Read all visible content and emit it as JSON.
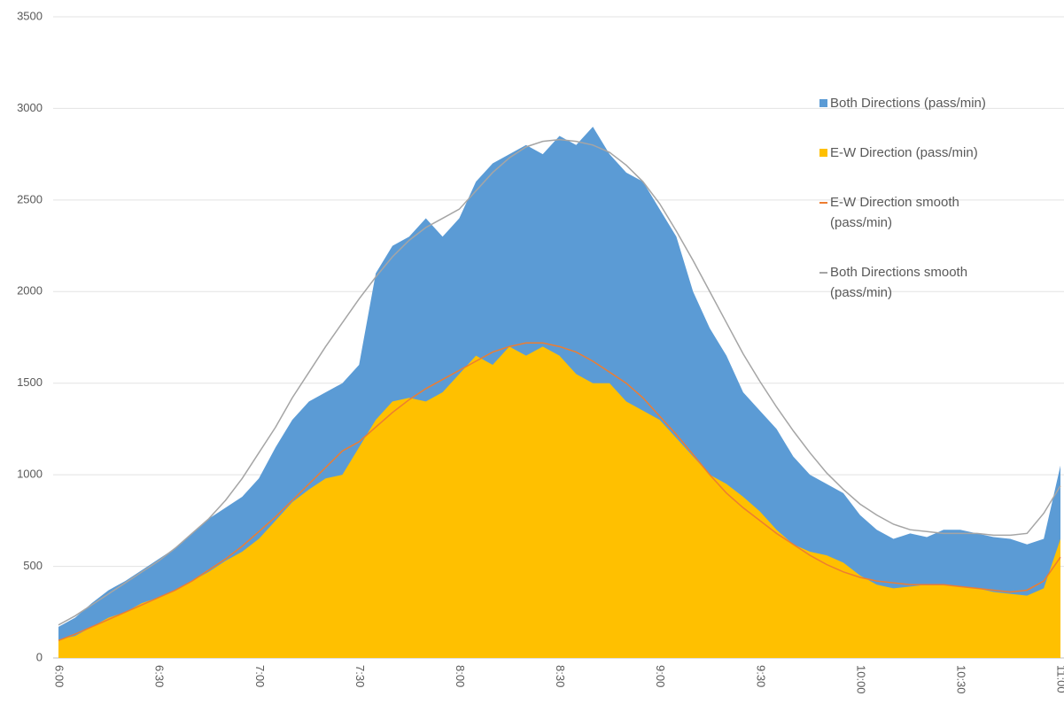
{
  "chart_data": {
    "type": "area",
    "categories": [
      "6:00",
      null,
      null,
      null,
      null,
      null,
      "6:30",
      null,
      null,
      null,
      null,
      null,
      "7:00",
      null,
      null,
      null,
      null,
      null,
      "7:30",
      null,
      null,
      null,
      null,
      null,
      "8:00",
      null,
      null,
      null,
      null,
      null,
      "8:30",
      null,
      null,
      null,
      null,
      null,
      "9:00",
      null,
      null,
      null,
      null,
      null,
      "9:30",
      null,
      null,
      null,
      null,
      null,
      "10:00",
      null,
      null,
      null,
      null,
      null,
      "10:30",
      null,
      null,
      null,
      null,
      null,
      "11:00"
    ],
    "series": [
      {
        "name": "Both Directions (pass/min)",
        "type": "area",
        "color": "#5b9bd5",
        "values": [
          170,
          220,
          300,
          370,
          420,
          480,
          540,
          600,
          680,
          760,
          820,
          880,
          980,
          1150,
          1300,
          1400,
          1450,
          1500,
          1600,
          2100,
          2250,
          2300,
          2400,
          2300,
          2400,
          2600,
          2700,
          2750,
          2800,
          2750,
          2850,
          2800,
          2900,
          2750,
          2650,
          2600,
          2450,
          2300,
          2000,
          1800,
          1650,
          1450,
          1350,
          1250,
          1100,
          1000,
          950,
          900,
          780,
          700,
          650,
          680,
          660,
          700,
          700,
          680,
          660,
          650,
          620,
          650,
          1050
        ]
      },
      {
        "name": "E-W Direction (pass/min)",
        "type": "area",
        "color": "#ffc000",
        "values": [
          100,
          120,
          170,
          220,
          250,
          300,
          330,
          370,
          420,
          470,
          530,
          580,
          650,
          750,
          850,
          920,
          980,
          1000,
          1150,
          1300,
          1400,
          1420,
          1400,
          1450,
          1550,
          1650,
          1600,
          1700,
          1650,
          1700,
          1650,
          1550,
          1500,
          1500,
          1400,
          1350,
          1300,
          1200,
          1100,
          1000,
          950,
          880,
          800,
          700,
          620,
          580,
          560,
          520,
          450,
          400,
          380,
          390,
          400,
          400,
          390,
          380,
          360,
          350,
          340,
          380,
          650
        ]
      },
      {
        "name": "E-W Direction smooth (pass/min)",
        "type": "line",
        "color": "#ed7d31",
        "values": [
          95,
          130,
          170,
          210,
          250,
          290,
          330,
          370,
          420,
          480,
          540,
          610,
          690,
          770,
          860,
          950,
          1040,
          1130,
          1180,
          1260,
          1340,
          1410,
          1470,
          1520,
          1570,
          1620,
          1670,
          1700,
          1720,
          1720,
          1700,
          1670,
          1620,
          1560,
          1500,
          1420,
          1320,
          1220,
          1110,
          1000,
          900,
          820,
          750,
          680,
          620,
          560,
          510,
          470,
          440,
          420,
          410,
          400,
          400,
          400,
          390,
          380,
          370,
          360,
          370,
          420,
          550
        ]
      },
      {
        "name": "Both Directions smooth (pass/min)",
        "type": "line",
        "color": "#a5a5a5",
        "values": [
          180,
          230,
          290,
          350,
          410,
          470,
          530,
          600,
          680,
          760,
          860,
          980,
          1120,
          1260,
          1420,
          1560,
          1700,
          1830,
          1960,
          2080,
          2190,
          2280,
          2350,
          2400,
          2450,
          2550,
          2650,
          2730,
          2790,
          2820,
          2830,
          2820,
          2800,
          2760,
          2690,
          2600,
          2480,
          2330,
          2170,
          2000,
          1830,
          1660,
          1510,
          1370,
          1240,
          1120,
          1010,
          920,
          840,
          780,
          730,
          700,
          690,
          680,
          680,
          680,
          670,
          670,
          680,
          790,
          940
        ]
      }
    ],
    "ylim": [
      0,
      3500
    ],
    "yticks": [
      0,
      500,
      1000,
      1500,
      2000,
      2500,
      3000,
      3500
    ],
    "grid": true,
    "legend": "right"
  }
}
